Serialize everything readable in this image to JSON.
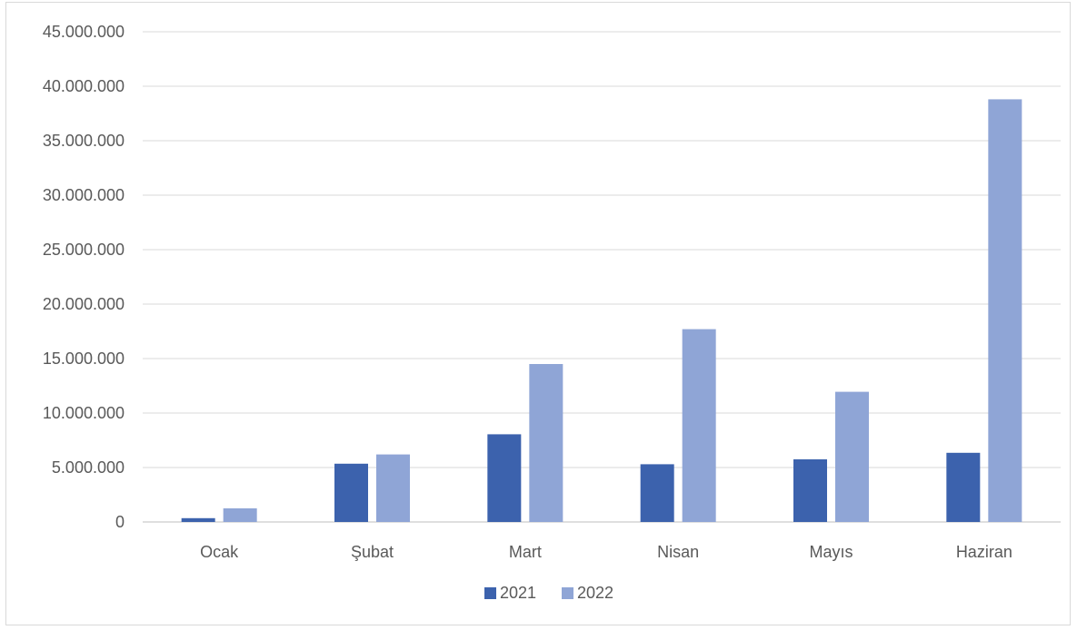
{
  "chart_data": {
    "type": "bar",
    "title": "",
    "xlabel": "",
    "ylabel": "",
    "categories": [
      "Ocak",
      "Şubat",
      "Mart",
      "Nisan",
      "Mayıs",
      "Haziran"
    ],
    "series": [
      {
        "name": "2021",
        "color": "#3c62ad",
        "values": [
          350000,
          5350000,
          8050000,
          5300000,
          5750000,
          6350000
        ]
      },
      {
        "name": "2022",
        "color": "#8fa5d6",
        "values": [
          1250000,
          6200000,
          14500000,
          17700000,
          11950000,
          38800000
        ]
      }
    ],
    "ylim": [
      0,
      45000000
    ],
    "y_ticks": [
      0,
      5000000,
      10000000,
      15000000,
      20000000,
      25000000,
      30000000,
      35000000,
      40000000,
      45000000
    ],
    "y_tick_labels": [
      "0",
      "5.000.000",
      "10.000.000",
      "15.000.000",
      "20.000.000",
      "25.000.000",
      "30.000.000",
      "35.000.000",
      "40.000.000",
      "45.000.000"
    ],
    "grid": true,
    "legend_position": "bottom"
  }
}
